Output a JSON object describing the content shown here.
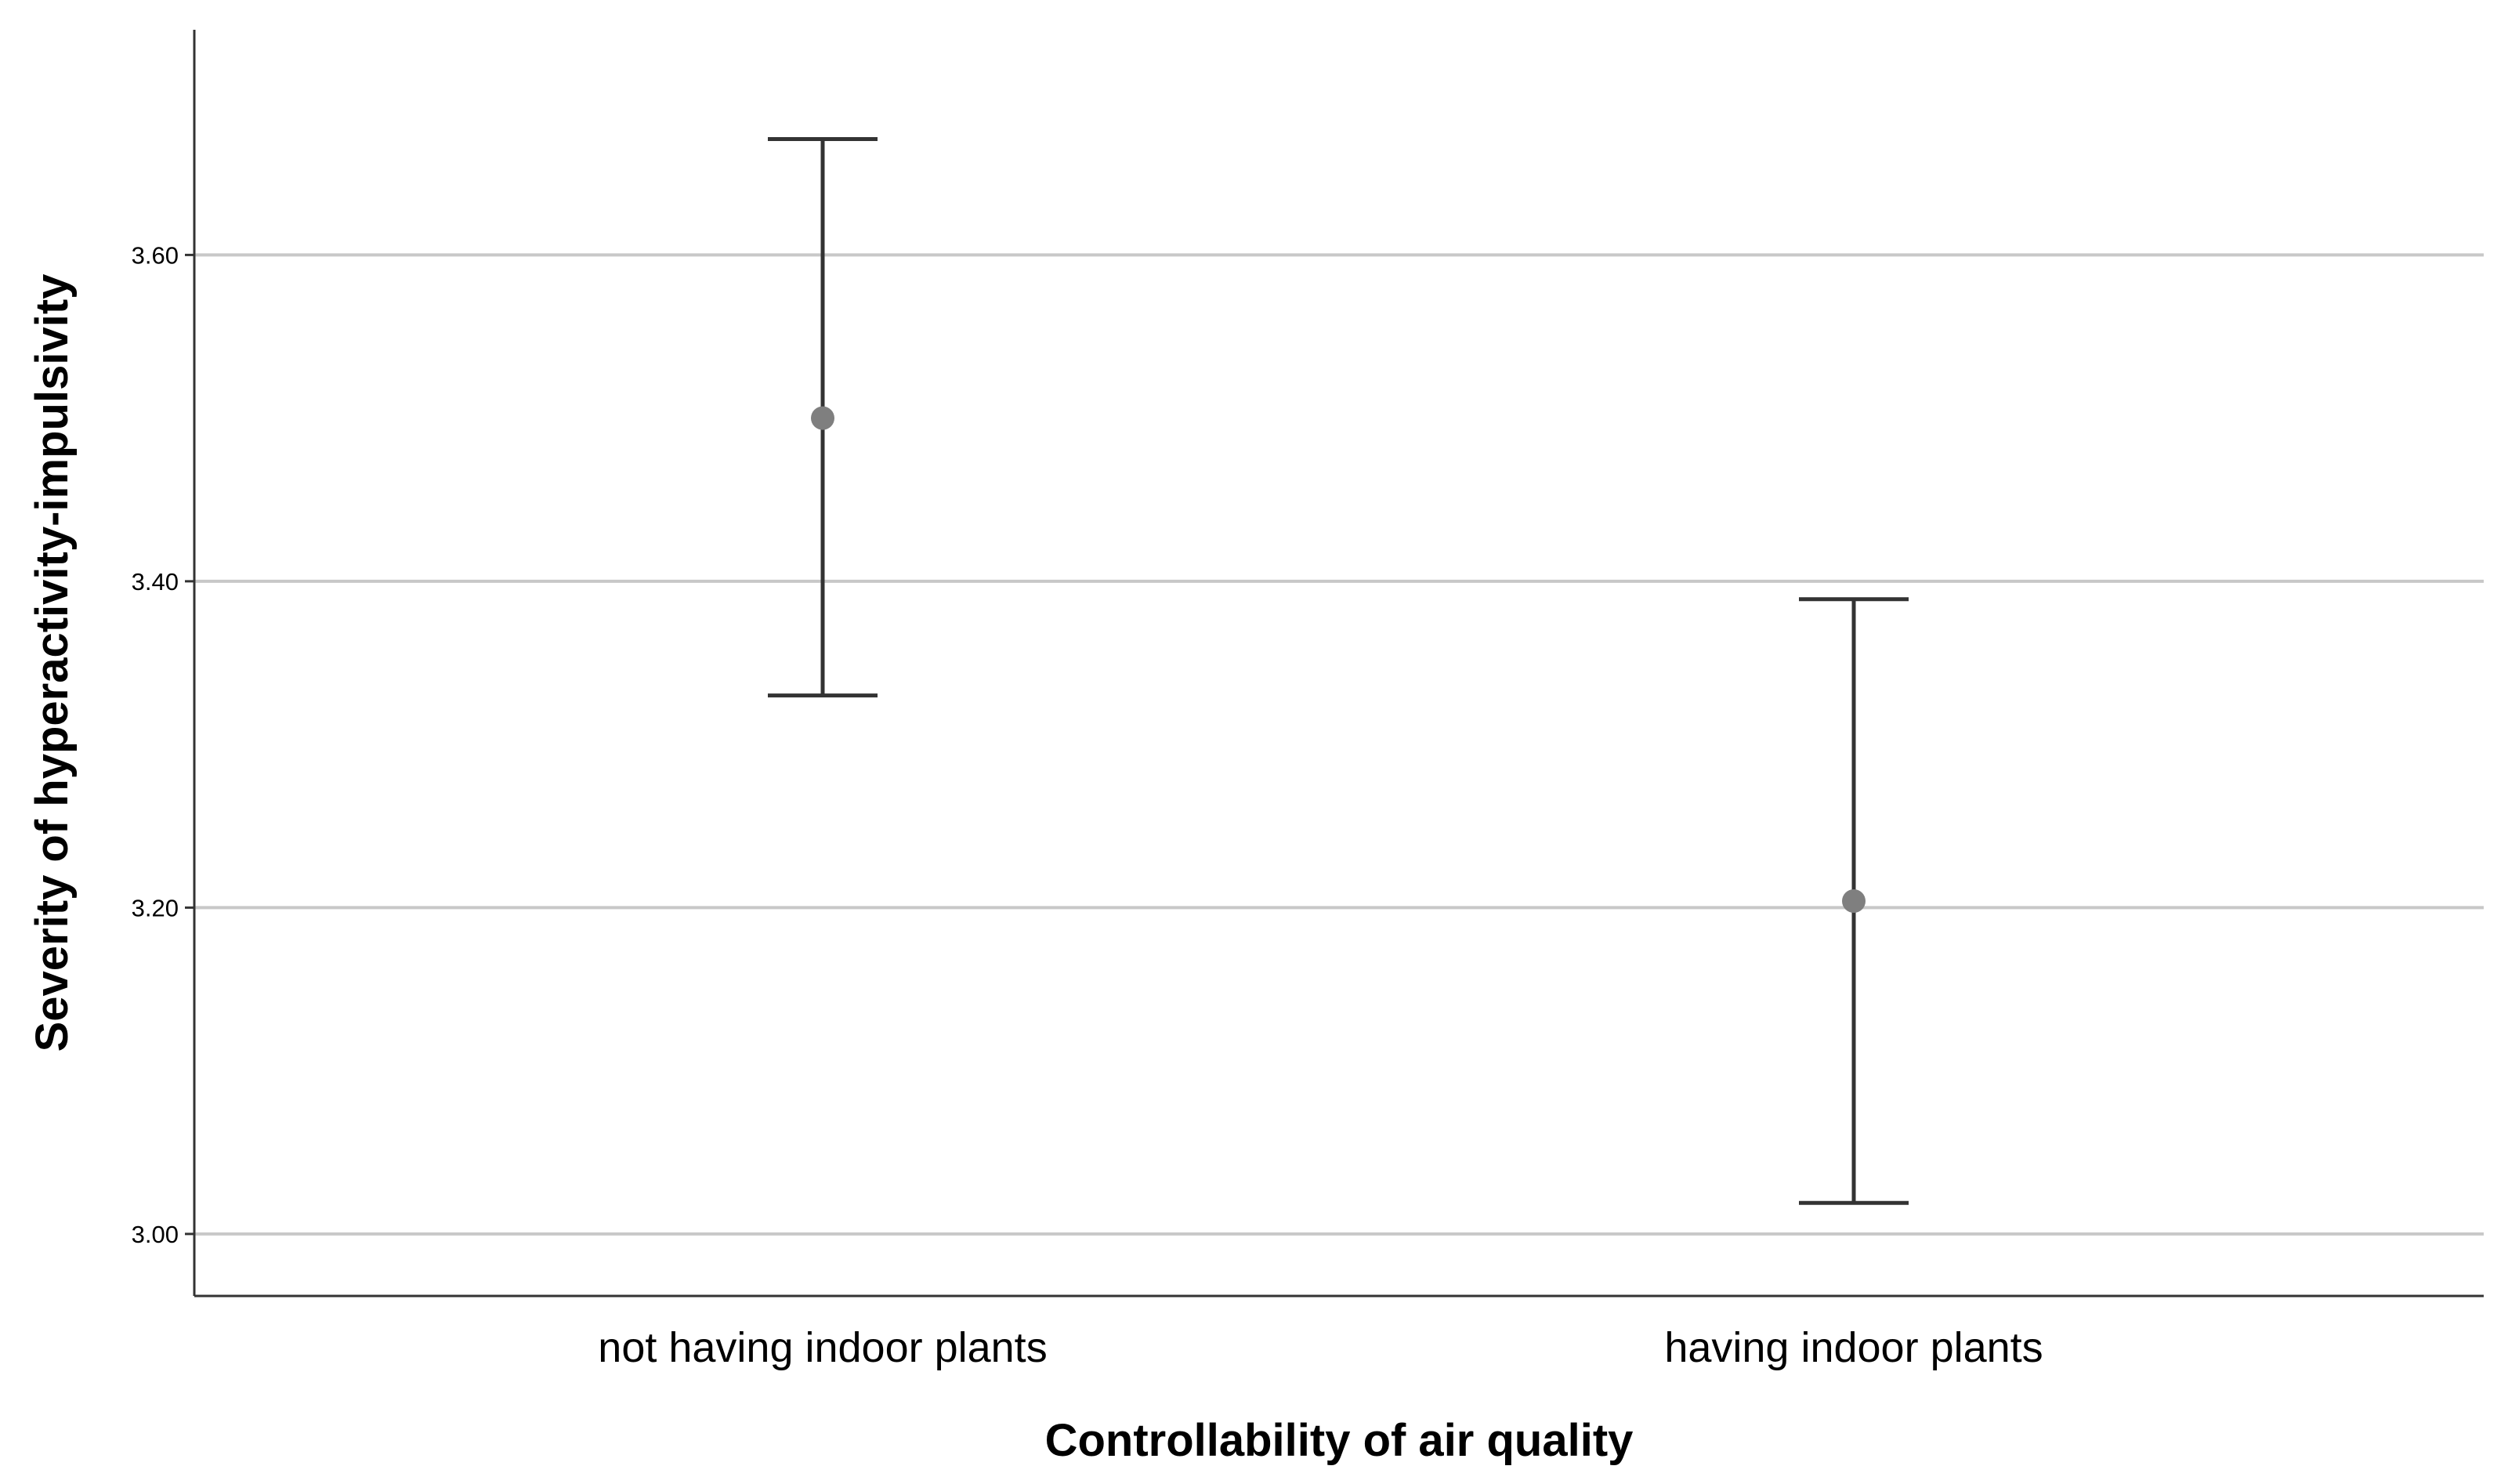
{
  "chart_data": {
    "type": "scatter",
    "subtype": "error-bar",
    "categories": [
      "not having indoor plants",
      "having indoor plants"
    ],
    "series": [
      {
        "means": [
          3.5,
          3.204
        ],
        "upper": [
          3.671,
          3.389
        ],
        "lower": [
          3.33,
          3.019
        ]
      }
    ],
    "xlabel": "Controllability of air quality",
    "ylabel": "Severity of hyperactivity-impulsivity",
    "yticks": [
      "3.00",
      "3.20",
      "3.40",
      "3.60"
    ],
    "ytick_values": [
      3.0,
      3.2,
      3.4,
      3.6
    ],
    "ylim": [
      2.962,
      3.738
    ],
    "grid": true,
    "legend": "none",
    "colors": {
      "marker": "#7f7f7f",
      "errorbar": "#333333",
      "grid": "#c8c8c8",
      "axis": "#333333"
    }
  }
}
